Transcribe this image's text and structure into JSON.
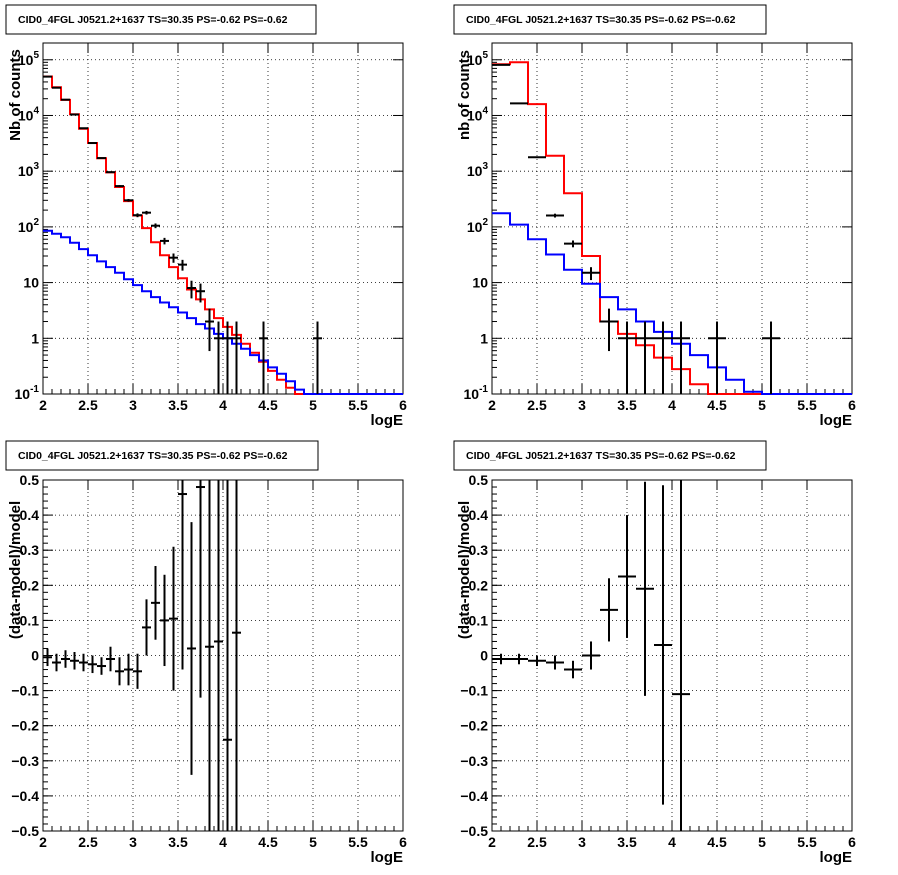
{
  "title": "CID0_4FGL J0521.2+1637 TS=30.35 PS=-0.62 PS=-0.62",
  "colors": {
    "data": "#000000",
    "total_model": "#ff0000",
    "background_model": "#0000ff",
    "grid": "#000000"
  },
  "chart_data": [
    {
      "type": "step",
      "title": "CID0_4FGL J0521.2+1637 TS=30.35 PS=-0.62 PS=-0.62",
      "xlabel": "logE",
      "ylabel": "Nb of counts",
      "xlim": [
        2,
        6
      ],
      "ylim": [
        0.1,
        200000
      ],
      "yscale": "log",
      "grid": true,
      "x_ticks": [
        "2",
        "2.5",
        "3",
        "3.5",
        "4",
        "4.5",
        "5",
        "5.5",
        "6"
      ],
      "y_ticks": [
        "10^-1",
        "1",
        "10",
        "10^2",
        "10^3",
        "10^4",
        "10^5"
      ],
      "bin_width": 0.1,
      "series": [
        {
          "color": "red",
          "bin_lows": [
            2.0,
            2.1,
            2.2,
            2.3,
            2.4,
            2.5,
            2.6,
            2.7,
            2.8,
            2.9,
            3.0,
            3.1,
            3.2,
            3.3,
            3.4,
            3.5,
            3.6,
            3.7,
            3.8,
            3.9,
            4.0,
            4.1,
            4.2,
            4.3,
            4.4,
            4.5,
            4.6,
            4.7,
            4.8,
            4.9,
            5.0,
            5.1,
            5.2,
            5.3,
            5.4,
            5.5,
            5.6,
            5.7,
            5.8,
            5.9
          ],
          "values": [
            50000,
            32000,
            19000,
            10500,
            5800,
            3200,
            1700,
            950,
            520,
            290,
            160,
            95,
            53,
            31,
            19,
            12,
            7.5,
            5,
            3.3,
            2.3,
            1.6,
            1.15,
            0.8,
            0.55,
            0.38,
            0.26,
            0.18,
            0.13,
            0.1,
            0.1,
            0.1,
            0.1,
            0.1,
            0.1,
            0.1,
            0.1,
            0.1,
            0.1,
            0.1,
            0.1
          ]
        },
        {
          "color": "blue",
          "bin_lows": [
            2.0,
            2.1,
            2.2,
            2.3,
            2.4,
            2.5,
            2.6,
            2.7,
            2.8,
            2.9,
            3.0,
            3.1,
            3.2,
            3.3,
            3.4,
            3.5,
            3.6,
            3.7,
            3.8,
            3.9,
            4.0,
            4.1,
            4.2,
            4.3,
            4.4,
            4.5,
            4.6,
            4.7,
            4.8,
            4.9,
            5.0,
            5.1,
            5.2,
            5.3,
            5.4,
            5.5,
            5.6,
            5.7,
            5.8,
            5.9
          ],
          "values": [
            85,
            75,
            65,
            52,
            40,
            31,
            24,
            19,
            15,
            11.5,
            9,
            7,
            5.5,
            4.4,
            3.6,
            2.9,
            2.3,
            1.8,
            1.5,
            1.2,
            1.0,
            0.8,
            0.65,
            0.5,
            0.4,
            0.3,
            0.23,
            0.17,
            0.12,
            0.1,
            0.1,
            0.1,
            0.1,
            0.1,
            0.1,
            0.1,
            0.1,
            0.1,
            0.1,
            0.1
          ]
        }
      ],
      "points": {
        "x": [
          2.05,
          2.15,
          2.25,
          2.35,
          2.45,
          2.55,
          2.65,
          2.75,
          2.85,
          2.95,
          3.05,
          3.15,
          3.25,
          3.35,
          3.45,
          3.55,
          3.65,
          3.75,
          3.85,
          3.95,
          4.05,
          4.15,
          4.45,
          5.05
        ],
        "y": [
          49800,
          31500,
          19200,
          10400,
          5900,
          3200,
          1720,
          960,
          540,
          300,
          162,
          180,
          105,
          56,
          28,
          21,
          8,
          7,
          2,
          1,
          1,
          1,
          1,
          1
        ],
        "err_lo": [
          220,
          180,
          140,
          100,
          77,
          57,
          41,
          31,
          23,
          17,
          12.7,
          13.4,
          10.2,
          7.5,
          5.3,
          4.6,
          2.8,
          2.6,
          1.41,
          0.95,
          0.95,
          0.95,
          0.95,
          0.95
        ],
        "err_hi": [
          220,
          180,
          140,
          100,
          77,
          57,
          41,
          31,
          23,
          17,
          12.7,
          13.4,
          10.2,
          7.5,
          5.3,
          4.6,
          2.8,
          2.6,
          1.41,
          1,
          1,
          1,
          1,
          1
        ]
      }
    },
    {
      "type": "step",
      "title": "CID0_4FGL J0521.2+1637 TS=30.35 PS=-0.62 PS=-0.62",
      "xlabel": "logE",
      "ylabel": "nb of counts",
      "xlim": [
        2,
        6
      ],
      "ylim": [
        0.1,
        200000
      ],
      "yscale": "log",
      "grid": true,
      "x_ticks": [
        "2",
        "2.5",
        "3",
        "3.5",
        "4",
        "4.5",
        "5",
        "5.5",
        "6"
      ],
      "y_ticks": [
        "10^-1",
        "1",
        "10",
        "10^2",
        "10^3",
        "10^4",
        "10^5"
      ],
      "bin_width": 0.2,
      "series": [
        {
          "color": "red",
          "bin_lows": [
            2.0,
            2.2,
            2.4,
            2.6,
            2.8,
            3.0,
            3.2,
            3.4,
            3.6,
            3.8,
            4.0,
            4.2,
            4.4,
            4.6,
            4.8,
            5.0,
            5.2,
            5.4,
            5.6,
            5.8
          ],
          "values": [
            83000,
            90000,
            16000,
            1900,
            400,
            30,
            2,
            1.2,
            0.75,
            0.45,
            0.28,
            0.15,
            0.1,
            0.1,
            0.1,
            0.1,
            0.1,
            0.1,
            0.1,
            0.1
          ]
        },
        {
          "color": "blue",
          "bin_lows": [
            2.0,
            2.2,
            2.4,
            2.6,
            2.8,
            3.0,
            3.2,
            3.4,
            3.6,
            3.8,
            4.0,
            4.2,
            4.4,
            4.6,
            4.8,
            5.0,
            5.2,
            5.4,
            5.6,
            5.8
          ],
          "values": [
            175,
            110,
            60,
            32,
            17,
            9.5,
            5.5,
            3.3,
            2,
            1.3,
            0.8,
            0.5,
            0.3,
            0.18,
            0.11,
            0.1,
            0.1,
            0.1,
            0.1,
            0.1
          ]
        }
      ],
      "points": {
        "x": [
          2.1,
          2.3,
          2.5,
          2.7,
          2.9,
          3.1,
          3.3,
          3.5,
          3.7,
          3.9,
          4.1,
          4.5,
          5.1
        ],
        "y": [
          81000,
          16500,
          1780,
          160,
          50,
          15,
          2,
          1,
          1,
          1,
          1,
          1,
          1
        ],
        "err_lo": [
          285,
          128,
          42,
          12.6,
          7,
          3.9,
          1.41,
          0.95,
          0.95,
          0.95,
          0.95,
          0.95,
          0.95
        ],
        "err_hi": [
          285,
          128,
          42,
          12.6,
          7,
          3.9,
          1.41,
          1,
          1,
          1,
          1,
          1,
          1
        ]
      }
    },
    {
      "type": "scatter",
      "title": "CID0_4FGL J0521.2+1637 TS=30.35 PS=-0.62 PS=-0.62",
      "xlabel": "logE",
      "ylabel": "(data-model)/model",
      "xlim": [
        2,
        6
      ],
      "ylim": [
        -0.5,
        0.5
      ],
      "grid": true,
      "x_ticks": [
        "2",
        "2.5",
        "3",
        "3.5",
        "4",
        "4.5",
        "5",
        "5.5",
        "6"
      ],
      "y_ticks": [
        "−0.5",
        "−0.4",
        "−0.3",
        "−0.2",
        "−0.1",
        "0",
        "0.1",
        "0.2",
        "0.3",
        "0.4",
        "0.5"
      ],
      "points": {
        "x": [
          2.05,
          2.15,
          2.25,
          2.35,
          2.45,
          2.55,
          2.65,
          2.75,
          2.85,
          2.95,
          3.05,
          3.15,
          3.25,
          3.35,
          3.45,
          3.55,
          3.65,
          3.75,
          3.85,
          3.95,
          4.05,
          4.15
        ],
        "y": [
          -0.005,
          -0.02,
          -0.01,
          -0.015,
          -0.02,
          -0.025,
          -0.03,
          -0.01,
          -0.045,
          -0.04,
          -0.045,
          0.08,
          0.15,
          0.1,
          0.105,
          0.46,
          0.02,
          0.48,
          0.025,
          0.04,
          -0.24,
          0.065
        ],
        "err": [
          0.025,
          0.025,
          0.025,
          0.025,
          0.025,
          0.025,
          0.025,
          0.035,
          0.04,
          0.045,
          0.05,
          0.08,
          0.105,
          0.13,
          0.205,
          0.5,
          0.36,
          0.6,
          0.9,
          0.9,
          0.9,
          0.9
        ]
      }
    },
    {
      "type": "scatter",
      "title": "CID0_4FGL J0521.2+1637 TS=30.35 PS=-0.62 PS=-0.62",
      "xlabel": "logE",
      "ylabel": "(data-model)/model",
      "xlim": [
        2,
        6
      ],
      "ylim": [
        -0.5,
        0.5
      ],
      "grid": true,
      "x_ticks": [
        "2",
        "2.5",
        "3",
        "3.5",
        "4",
        "4.5",
        "5",
        "5.5",
        "6"
      ],
      "y_ticks": [
        "−0.5",
        "−0.4",
        "−0.3",
        "−0.2",
        "−0.1",
        "0",
        "0.1",
        "0.2",
        "0.3",
        "0.4",
        "0.5"
      ],
      "points": {
        "x": [
          2.1,
          2.3,
          2.5,
          2.7,
          2.9,
          3.1,
          3.3,
          3.5,
          3.7,
          3.9,
          4.1
        ],
        "y": [
          -0.01,
          -0.01,
          -0.015,
          -0.02,
          -0.04,
          0.0,
          0.13,
          0.225,
          0.19,
          0.03,
          -0.11
        ],
        "err": [
          0.015,
          0.015,
          0.015,
          0.02,
          0.025,
          0.04,
          0.09,
          0.175,
          0.305,
          0.455,
          0.9
        ]
      }
    }
  ]
}
